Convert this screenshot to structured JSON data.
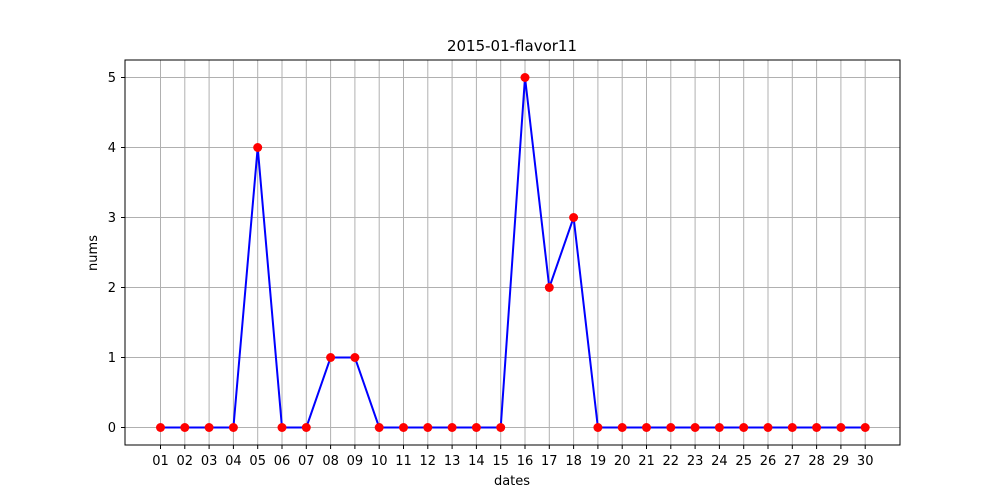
{
  "chart_data": {
    "type": "line",
    "title": "2015-01-flavor11",
    "xlabel": "dates",
    "ylabel": "nums",
    "categories": [
      "01",
      "02",
      "03",
      "04",
      "05",
      "06",
      "07",
      "08",
      "09",
      "10",
      "11",
      "12",
      "13",
      "14",
      "15",
      "16",
      "17",
      "18",
      "19",
      "20",
      "21",
      "22",
      "23",
      "24",
      "25",
      "26",
      "27",
      "28",
      "29",
      "30"
    ],
    "values": [
      0,
      0,
      0,
      0,
      4,
      0,
      0,
      1,
      1,
      0,
      0,
      0,
      0,
      0,
      0,
      5,
      2,
      3,
      0,
      0,
      0,
      0,
      0,
      0,
      0,
      0,
      0,
      0,
      0,
      0
    ],
    "yticks": [
      "0",
      "1",
      "2",
      "3",
      "4",
      "5"
    ],
    "ylim": [
      -0.25,
      5.25
    ],
    "grid": true,
    "line_color": "#0000ff",
    "marker_color": "#ff0000"
  }
}
